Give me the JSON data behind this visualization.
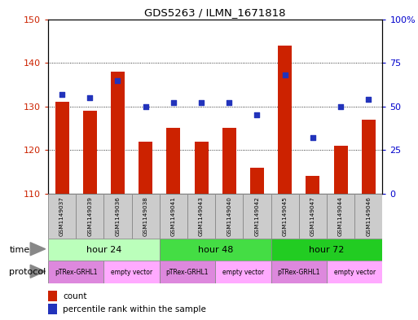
{
  "title": "GDS5263 / ILMN_1671818",
  "samples": [
    "GSM1149037",
    "GSM1149039",
    "GSM1149036",
    "GSM1149038",
    "GSM1149041",
    "GSM1149043",
    "GSM1149040",
    "GSM1149042",
    "GSM1149045",
    "GSM1149047",
    "GSM1149044",
    "GSM1149046"
  ],
  "counts": [
    131,
    129,
    138,
    122,
    125,
    122,
    125,
    116,
    144,
    114,
    121,
    127
  ],
  "percentiles": [
    57,
    55,
    65,
    50,
    52,
    52,
    52,
    45,
    68,
    32,
    50,
    54
  ],
  "ylim_left": [
    110,
    150
  ],
  "ylim_right": [
    0,
    100
  ],
  "yticks_left": [
    110,
    120,
    130,
    140,
    150
  ],
  "yticks_right": [
    0,
    25,
    50,
    75,
    100
  ],
  "bar_color": "#cc2200",
  "dot_color": "#2233bb",
  "time_groups": [
    {
      "label": "hour 24",
      "start": 0,
      "end": 3,
      "color": "#bbffbb"
    },
    {
      "label": "hour 48",
      "start": 4,
      "end": 7,
      "color": "#44dd44"
    },
    {
      "label": "hour 72",
      "start": 8,
      "end": 11,
      "color": "#22cc22"
    }
  ],
  "protocol_groups": [
    {
      "label": "pTRex-GRHL1",
      "start": 0,
      "end": 1,
      "color": "#dd88dd"
    },
    {
      "label": "empty vector",
      "start": 2,
      "end": 3,
      "color": "#ffaaff"
    },
    {
      "label": "pTRex-GRHL1",
      "start": 4,
      "end": 5,
      "color": "#dd88dd"
    },
    {
      "label": "empty vector",
      "start": 6,
      "end": 7,
      "color": "#ffaaff"
    },
    {
      "label": "pTRex-GRHL1",
      "start": 8,
      "end": 9,
      "color": "#dd88dd"
    },
    {
      "label": "empty vector",
      "start": 10,
      "end": 11,
      "color": "#ffaaff"
    }
  ],
  "label_color_left": "#cc2200",
  "label_color_right": "#0000cc",
  "time_label": "time",
  "protocol_label": "protocol",
  "legend_count": "count",
  "legend_percentile": "percentile rank within the sample",
  "sample_box_color": "#cccccc",
  "figure_width": 5.13,
  "figure_height": 3.93,
  "dpi": 100
}
